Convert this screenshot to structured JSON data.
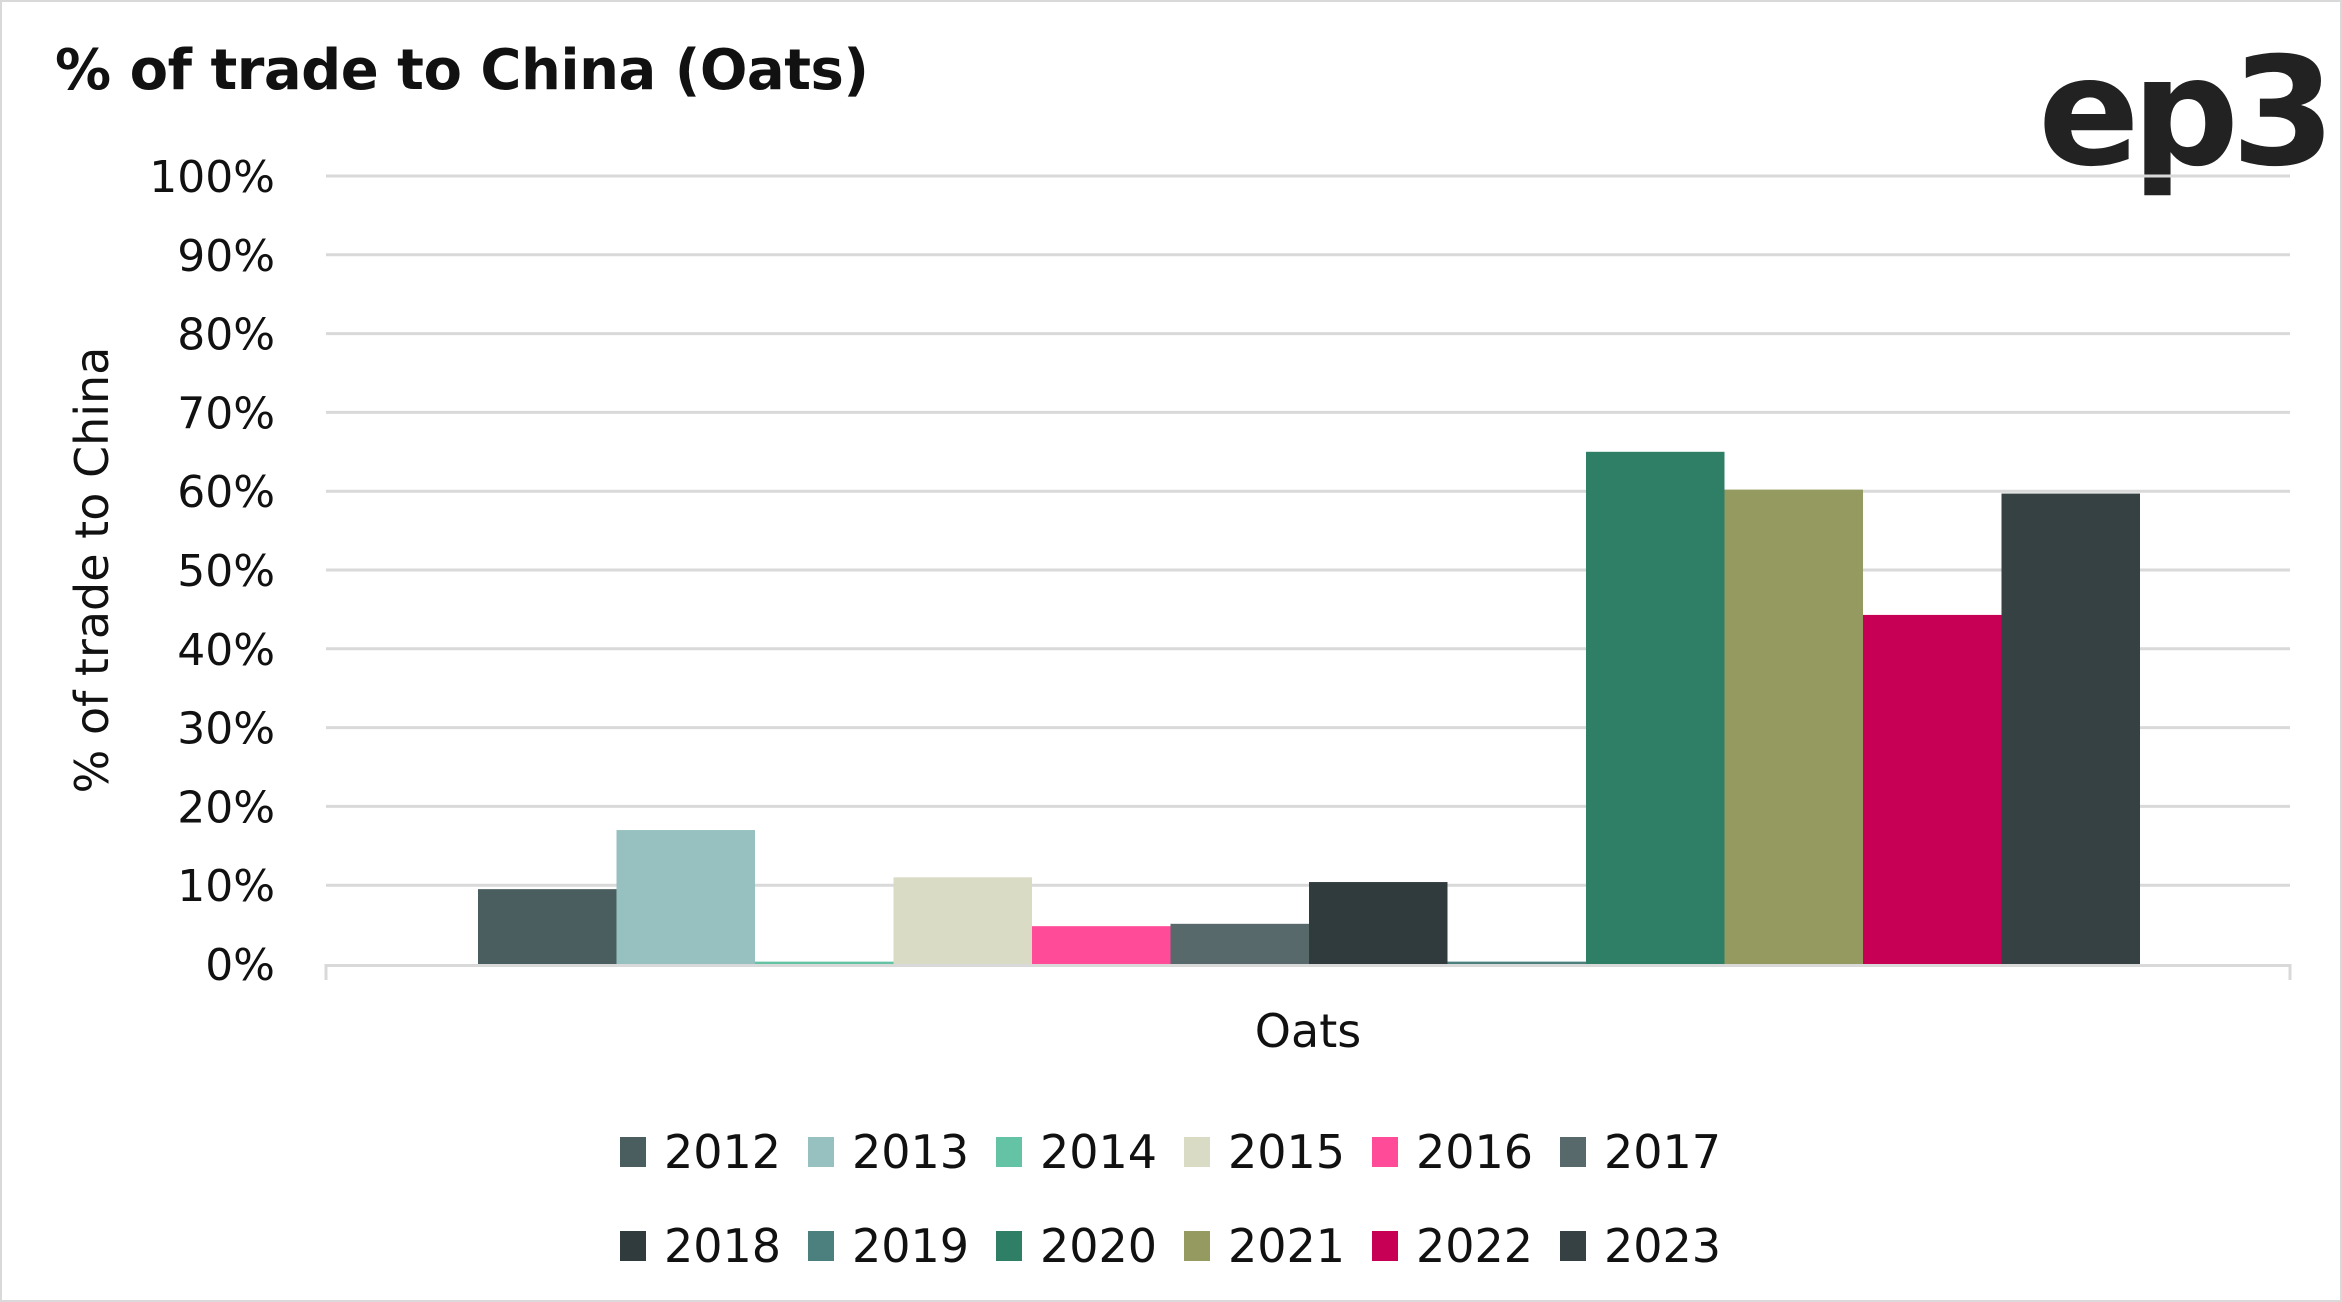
{
  "chart_data": {
    "type": "bar",
    "title": "% of trade to China (Oats)",
    "xlabel": "",
    "ylabel": "% of trade to China",
    "categories": [
      "Oats"
    ],
    "ylim": [
      0,
      100
    ],
    "yticks": [
      "0%",
      "10%",
      "20%",
      "30%",
      "40%",
      "50%",
      "60%",
      "70%",
      "80%",
      "90%",
      "100%"
    ],
    "grid": true,
    "legend_position": "bottom",
    "series": [
      {
        "name": "2012",
        "color": "#4b5e5f",
        "values": [
          9.5
        ]
      },
      {
        "name": "2013",
        "color": "#97c1c0",
        "values": [
          17.0
        ]
      },
      {
        "name": "2014",
        "color": "#64c3a4",
        "values": [
          0.3
        ]
      },
      {
        "name": "2015",
        "color": "#d9dbc5",
        "values": [
          11.0
        ]
      },
      {
        "name": "2016",
        "color": "#ff4b98",
        "values": [
          4.8
        ]
      },
      {
        "name": "2017",
        "color": "#58696b",
        "values": [
          5.1
        ]
      },
      {
        "name": "2018",
        "color": "#2f3b3c",
        "values": [
          10.4
        ]
      },
      {
        "name": "2019",
        "color": "#4b807e",
        "values": [
          0.3
        ]
      },
      {
        "name": "2020",
        "color": "#2f7f67",
        "values": [
          65.0
        ]
      },
      {
        "name": "2021",
        "color": "#959a60",
        "values": [
          60.2
        ]
      },
      {
        "name": "2022",
        "color": "#c70055",
        "values": [
          44.3
        ]
      },
      {
        "name": "2023",
        "color": "#354143",
        "values": [
          59.7
        ]
      }
    ]
  },
  "header": {
    "title": "% of trade to China (Oats)",
    "logo_text": "ep3"
  },
  "legend": {
    "rows": [
      [
        "2012",
        "2013",
        "2014",
        "2015",
        "2016",
        "2017"
      ],
      [
        "2018",
        "2019",
        "2020",
        "2021",
        "2022",
        "2023"
      ]
    ]
  }
}
